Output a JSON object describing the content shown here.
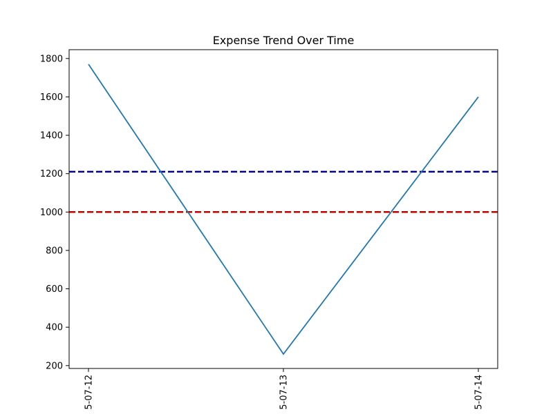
{
  "chart_data": {
    "type": "line",
    "title": "Expense Trend Over Time",
    "xlabel": "",
    "ylabel": "",
    "x": [
      "5-07-12",
      "5-07-13",
      "5-07-14"
    ],
    "series": [
      {
        "values": [
          1770,
          260,
          1600
        ],
        "color": "#1f77b4"
      }
    ],
    "reference_lines": [
      {
        "y": 1210,
        "color": "#00008b",
        "style": "dashed"
      },
      {
        "y": 1000,
        "color": "#c00000",
        "style": "dashed"
      }
    ],
    "yticks": [
      200,
      400,
      600,
      800,
      1000,
      1200,
      1400,
      1600,
      1800
    ],
    "ylim": [
      185,
      1846
    ],
    "grid": false,
    "legend": "none"
  }
}
